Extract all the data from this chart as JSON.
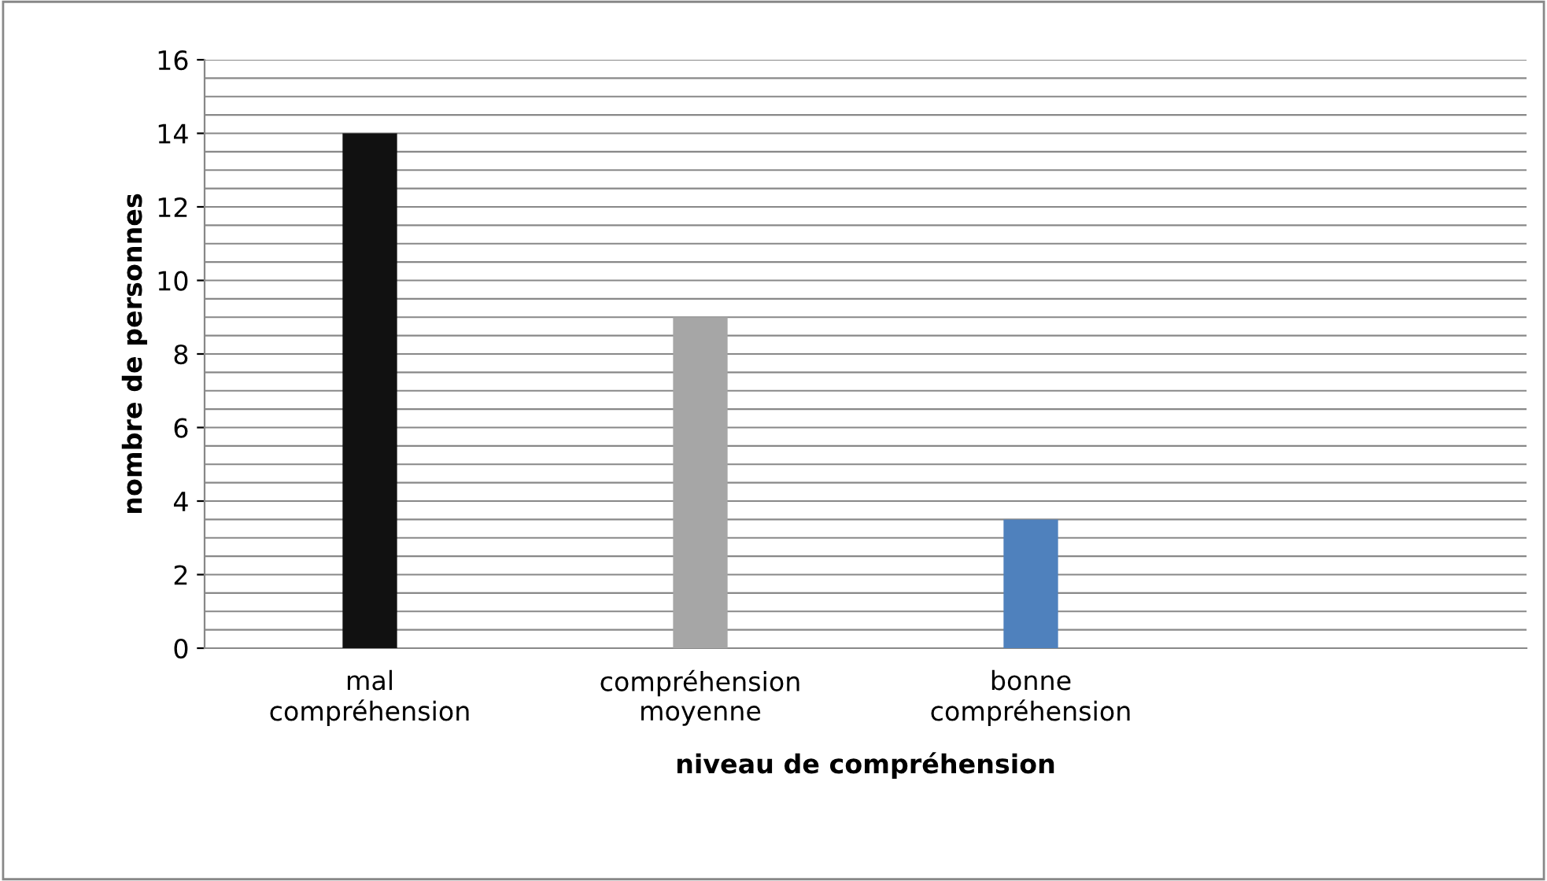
{
  "chart_data": {
    "type": "bar",
    "xlabel": "niveau de compréhension",
    "ylabel": "nombre de personnes",
    "categories": [
      "mal\ncompréhension",
      "compréhension\nmoyenne",
      "bonne\ncompréhension",
      null
    ],
    "values": [
      14,
      9,
      3.5,
      null
    ],
    "colors": [
      "#111111",
      "#a6a6a6",
      "#4f81bd",
      null
    ],
    "ylim": [
      0,
      16
    ],
    "yticks": [
      0,
      {
        "value": 0.5,
        "label": null
      },
      {
        "value": 1,
        "label": null
      },
      {
        "value": 1.5,
        "label": null
      },
      2,
      {
        "value": 2.5,
        "label": null
      },
      {
        "value": 3,
        "label": null
      },
      {
        "value": 3.5,
        "label": null
      },
      4,
      {
        "value": 4.5,
        "label": null
      },
      {
        "value": 5,
        "label": null
      },
      {
        "value": 5.5,
        "label": null
      },
      6,
      {
        "value": 6.5,
        "label": null
      },
      {
        "value": 7,
        "label": null
      },
      {
        "value": 7.5,
        "label": null
      },
      8,
      {
        "value": 8.5,
        "label": null
      },
      {
        "value": 9,
        "label": null
      },
      {
        "value": 9.5,
        "label": null
      },
      10,
      {
        "value": 10.5,
        "label": null
      },
      {
        "value": 11,
        "label": null
      },
      {
        "value": 11.5,
        "label": null
      },
      12,
      {
        "value": 12.5,
        "label": null
      },
      {
        "value": 13,
        "label": null
      },
      {
        "value": 13.5,
        "label": null
      },
      14,
      {
        "value": 14.5,
        "label": null
      },
      {
        "value": 15,
        "label": null
      },
      {
        "value": 15.5,
        "label": null
      },
      16
    ],
    "grid": "y",
    "legend": false
  }
}
